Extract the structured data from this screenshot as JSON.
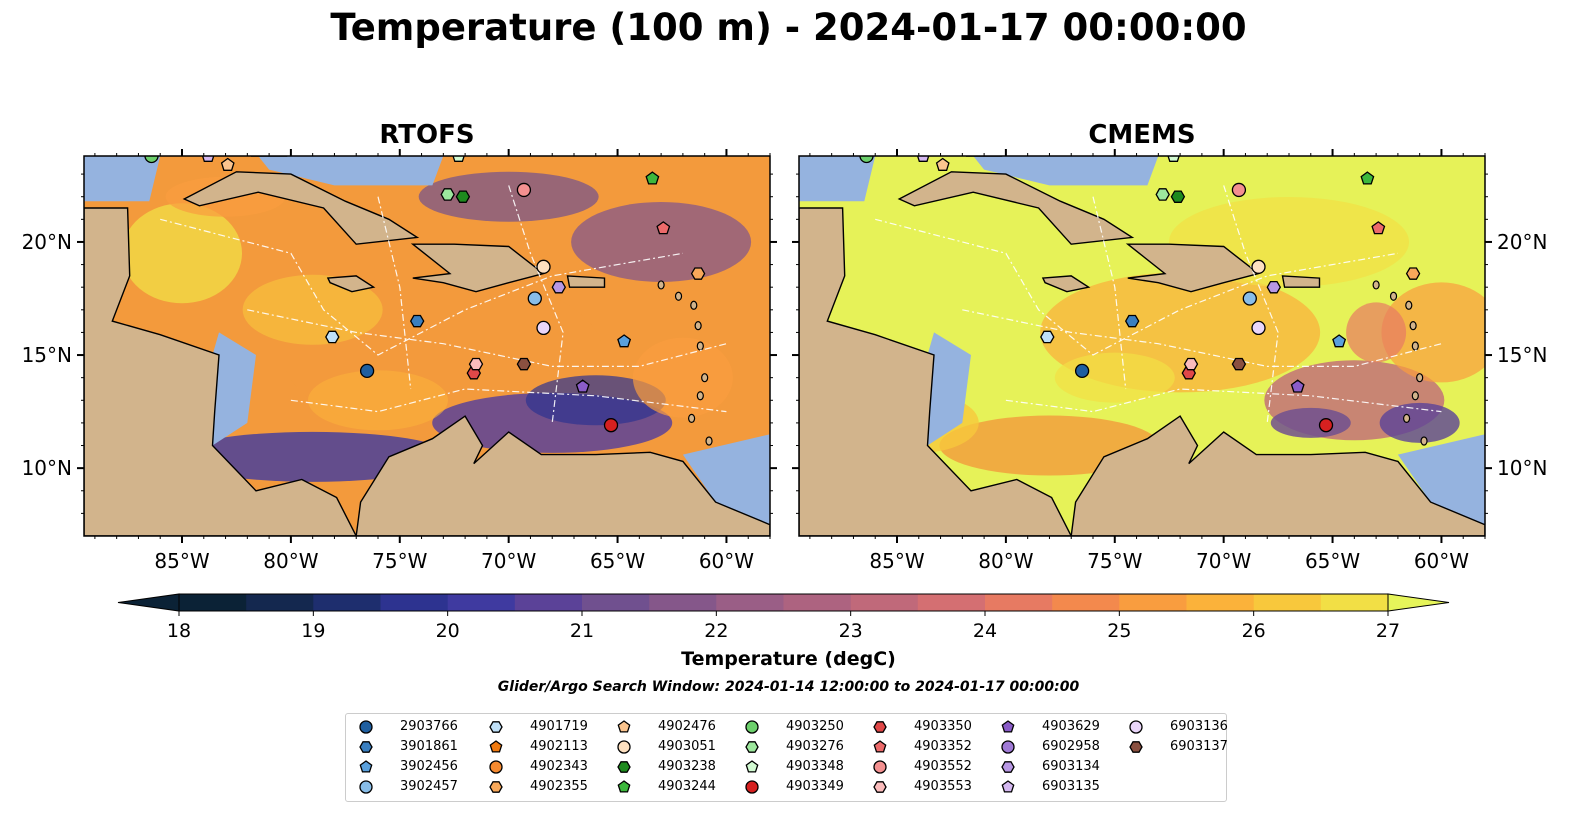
{
  "title": "Temperature (100 m) - 2024-01-17 00:00:00",
  "panels": [
    {
      "title": "RTOFS"
    },
    {
      "title": "CMEMS"
    }
  ],
  "axes": {
    "x_ticks": [
      "85°W",
      "80°W",
      "75°W",
      "70°W",
      "65°W",
      "60°W"
    ],
    "y_ticks": [
      "20°N",
      "15°N",
      "10°N"
    ]
  },
  "colorbar": {
    "label": "Temperature (degC)",
    "ticks": [
      "18",
      "19",
      "20",
      "21",
      "22",
      "23",
      "24",
      "25",
      "26",
      "27"
    ],
    "range": [
      18,
      27
    ],
    "extend": "both",
    "colors": [
      "#0b2236",
      "#14284f",
      "#1e2e6e",
      "#2d3390",
      "#3f3aa0",
      "#5b4298",
      "#70508f",
      "#85578a",
      "#9a5e86",
      "#ad6380",
      "#c0697a",
      "#d46f72",
      "#e77a62",
      "#f3894d",
      "#f99d3f",
      "#fbb23a",
      "#f8c83c",
      "#f2df45",
      "#e6f55a"
    ]
  },
  "search_window": "Glider/Argo Search Window: 2024-01-14 12:00:00 to 2024-01-17 00:00:00",
  "legend": [
    {
      "label": "2903766",
      "marker": "circle",
      "color": "#1f5fa0"
    },
    {
      "label": "3901861",
      "marker": "hexagon",
      "color": "#3a7fc0"
    },
    {
      "label": "3902456",
      "marker": "pentagon",
      "color": "#5aa0dc"
    },
    {
      "label": "3902457",
      "marker": "circle",
      "color": "#88bde8"
    },
    {
      "label": "4901719",
      "marker": "hexagon",
      "color": "#bfe0f8"
    },
    {
      "label": "4902113",
      "marker": "pentagon",
      "color": "#f07a10"
    },
    {
      "label": "4902343",
      "marker": "circle",
      "color": "#f58a30"
    },
    {
      "label": "4902355",
      "marker": "hexagon",
      "color": "#f8a85a"
    },
    {
      "label": "4902476",
      "marker": "pentagon",
      "color": "#fbc48e"
    },
    {
      "label": "4903051",
      "marker": "circle",
      "color": "#fde0c0"
    },
    {
      "label": "4903238",
      "marker": "hexagon",
      "color": "#1e8a1e"
    },
    {
      "label": "4903244",
      "marker": "pentagon",
      "color": "#3db83d"
    },
    {
      "label": "4903250",
      "marker": "circle",
      "color": "#6cd06c"
    },
    {
      "label": "4903276",
      "marker": "hexagon",
      "color": "#9de89d"
    },
    {
      "label": "4903348",
      "marker": "pentagon",
      "color": "#d2fad2"
    },
    {
      "label": "4903349",
      "marker": "circle",
      "color": "#d62020"
    },
    {
      "label": "4903350",
      "marker": "hexagon",
      "color": "#e04848"
    },
    {
      "label": "4903352",
      "marker": "pentagon",
      "color": "#ec6a6a"
    },
    {
      "label": "4903552",
      "marker": "circle",
      "color": "#f39090"
    },
    {
      "label": "4903553",
      "marker": "hexagon",
      "color": "#fbbcbc"
    },
    {
      "label": "4903629",
      "marker": "pentagon",
      "color": "#8a5cc8"
    },
    {
      "label": "6902958",
      "marker": "circle",
      "color": "#a07ad6"
    },
    {
      "label": "6903134",
      "marker": "hexagon",
      "color": "#b898e4"
    },
    {
      "label": "6903135",
      "marker": "pentagon",
      "color": "#d4b8f0"
    },
    {
      "label": "6903136",
      "marker": "circle",
      "color": "#ead6fa"
    },
    {
      "label": "6903137",
      "marker": "hexagon",
      "color": "#8a5040"
    }
  ],
  "floats": [
    {
      "label": "2903766",
      "lon": -76.5,
      "lat": 14.3
    },
    {
      "label": "3901861",
      "lon": -74.2,
      "lat": 16.5
    },
    {
      "label": "3902456",
      "lon": -64.7,
      "lat": 15.6
    },
    {
      "label": "3902457",
      "lon": -68.8,
      "lat": 17.5
    },
    {
      "label": "4901719",
      "lon": -78.1,
      "lat": 15.8
    },
    {
      "label": "4902355",
      "lon": -61.3,
      "lat": 18.6
    },
    {
      "label": "4902476",
      "lon": -82.9,
      "lat": 23.4
    },
    {
      "label": "4903051",
      "lon": -68.4,
      "lat": 18.9
    },
    {
      "label": "4903238",
      "lon": -72.1,
      "lat": 22.0
    },
    {
      "label": "4903244",
      "lon": -63.4,
      "lat": 22.8
    },
    {
      "label": "4903250",
      "lon": -86.4,
      "lat": 23.8
    },
    {
      "label": "4903276",
      "lon": -72.8,
      "lat": 22.1
    },
    {
      "label": "4903348",
      "lon": -72.3,
      "lat": 23.8
    },
    {
      "label": "4903349",
      "lon": -65.3,
      "lat": 11.9
    },
    {
      "label": "4903350",
      "lon": -71.6,
      "lat": 14.2
    },
    {
      "label": "4903352",
      "lon": -62.9,
      "lat": 20.6
    },
    {
      "label": "4903552",
      "lon": -69.3,
      "lat": 22.3
    },
    {
      "label": "4903553",
      "lon": -71.5,
      "lat": 14.6
    },
    {
      "label": "4903629",
      "lon": -66.6,
      "lat": 13.6
    },
    {
      "label": "6903134",
      "lon": -67.7,
      "lat": 18.0
    },
    {
      "label": "6903136",
      "lon": -68.4,
      "lat": 16.2
    },
    {
      "label": "6903137",
      "lon": -69.3,
      "lat": 14.6
    },
    {
      "label": "6903135",
      "lon": -83.8,
      "lat": 23.8
    }
  ]
}
